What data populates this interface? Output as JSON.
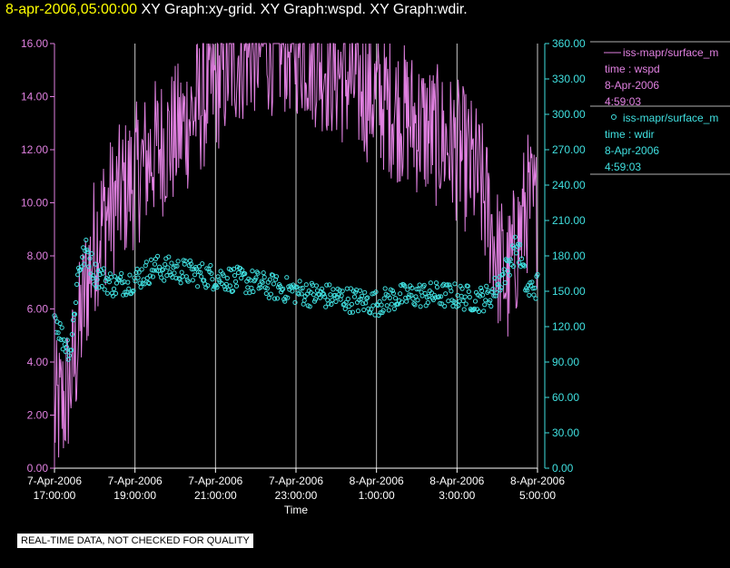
{
  "header": {
    "timestamp": "8-apr-2006,05:00:00",
    "titles": "XY Graph:xy-grid.  XY Graph:wspd.  XY Graph:wdir."
  },
  "notice": "REAL-TIME DATA, NOT CHECKED FOR QUALITY",
  "colors": {
    "background": "#000000",
    "wspd": "#e080e0",
    "wdir": "#40e0e0",
    "grid": "#c8c8c8",
    "timestamp": "#ffff00"
  },
  "chart_data": {
    "type": "line",
    "xlabel": "Time",
    "xlim": [
      "2006-04-07T17:00:00",
      "2006-04-08T05:00:00"
    ],
    "x_ticks": [
      {
        "date": "7-Apr-2006",
        "time": "17:00:00"
      },
      {
        "date": "7-Apr-2006",
        "time": "19:00:00"
      },
      {
        "date": "7-Apr-2006",
        "time": "21:00:00"
      },
      {
        "date": "7-Apr-2006",
        "time": "23:00:00"
      },
      {
        "date": "8-Apr-2006",
        "time": "1:00:00"
      },
      {
        "date": "8-Apr-2006",
        "time": "3:00:00"
      },
      {
        "date": "8-Apr-2006",
        "time": "5:00:00"
      }
    ],
    "y_left": {
      "lim": [
        0,
        16
      ],
      "ticks": [
        "0.00",
        "2.00",
        "4.00",
        "6.00",
        "8.00",
        "10.00",
        "12.00",
        "14.00",
        "16.00"
      ]
    },
    "y_right": {
      "lim": [
        0,
        360
      ],
      "ticks": [
        "0.00",
        "30.00",
        "60.00",
        "90.00",
        "120.00",
        "150.00",
        "180.00",
        "210.00",
        "240.00",
        "270.00",
        "300.00",
        "330.00",
        "360.00"
      ]
    },
    "grid": "vertical",
    "legend_position": "right",
    "series": [
      {
        "name": "iss-mapr/surface_m",
        "type": "line",
        "axis": "left",
        "legend_lines": [
          "iss-mapr/surface_m",
          "time : wspd",
          "8-Apr-2006",
          "4:59:03"
        ],
        "hours": [
          0,
          0.25,
          0.5,
          0.75,
          1,
          1.25,
          1.5,
          2,
          2.5,
          3,
          3.5,
          4,
          4.5,
          5,
          5.5,
          6,
          6.5,
          7,
          7.5,
          8,
          8.5,
          9,
          9.5,
          10,
          10.5,
          10.8,
          11,
          11.25,
          11.5,
          11.75,
          12
        ],
        "values": [
          2.0,
          2.5,
          4.0,
          6.5,
          8.5,
          9.5,
          10.0,
          11.0,
          12.0,
          12.5,
          13.5,
          14.5,
          15.5,
          16.0,
          16.0,
          16.0,
          15.5,
          15.0,
          14.5,
          14.0,
          13.5,
          13.0,
          12.5,
          12.0,
          11.0,
          9.5,
          8.0,
          7.0,
          8.5,
          10.0,
          9.5
        ]
      },
      {
        "name": "iss-mapr/surface_m",
        "type": "scatter",
        "axis": "right",
        "legend_lines": [
          "iss-mapr/surface_m",
          "time : wdir",
          "8-Apr-2006",
          "4:59:03"
        ],
        "hours": [
          0,
          0.2,
          0.4,
          0.6,
          0.8,
          1,
          1.5,
          2,
          2.5,
          3,
          3.5,
          4,
          4.5,
          5,
          5.5,
          6,
          6.5,
          7,
          7.5,
          8,
          8.5,
          9,
          9.5,
          10,
          10.5,
          10.8,
          11,
          11.25,
          11.5,
          11.75,
          12
        ],
        "values": [
          130,
          110,
          100,
          170,
          185,
          165,
          155,
          160,
          170,
          168,
          165,
          162,
          160,
          157,
          153,
          150,
          147,
          145,
          142,
          140,
          145,
          147,
          147,
          146,
          143,
          145,
          155,
          170,
          190,
          150,
          155
        ]
      }
    ]
  }
}
